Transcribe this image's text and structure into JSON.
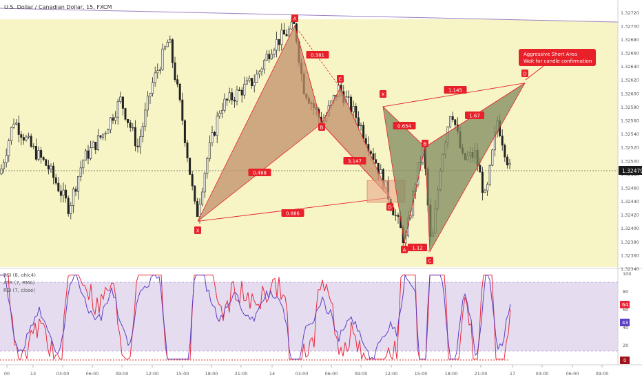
{
  "header": {
    "title": "U.S. Dollar / Canadian Dollar, 15, FXCM"
  },
  "annotation": {
    "line1": "Aggressive Short Area",
    "line2": "Wait for candle confirmation"
  },
  "price": {
    "current": "1.32479",
    "current_value": 1.32479,
    "ylim": [
      1.3234,
      1.3273
    ]
  },
  "indicators": {
    "legend": [
      "RSI (8, ohlc4)",
      "ATR (7, RMA)",
      "RSI (7, close)"
    ],
    "ylim": [
      0,
      100
    ],
    "ticks": [
      "100",
      "80",
      "60",
      "40",
      "20",
      "0"
    ],
    "tick_values": [
      100,
      80,
      60,
      40,
      20,
      0
    ],
    "badges": [
      "64",
      "43",
      "0"
    ]
  },
  "colors": {
    "plot_bg": "#f7f5c6",
    "osc_bg": "#e6dcf0",
    "bull_pattern": "#c08e6a",
    "bear_pattern": "#7f8a5e",
    "red": "#e8202a",
    "osc_line_a": "#e8283a",
    "osc_line_b": "#5b3fc4"
  },
  "chart_data": {
    "type": "candlestick",
    "y_axis_ticks": [
      "1.32720",
      "1.32700",
      "1.32680",
      "1.32660",
      "1.32640",
      "1.32620",
      "1.32600",
      "1.32580",
      "1.32560",
      "1.32540",
      "1.32520",
      "1.32500",
      "1.32480",
      "1.32460",
      "1.32440",
      "1.32420",
      "1.32400",
      "1.32380",
      "1.32360",
      "1.32340"
    ],
    "y_axis_values": [
      1.3272,
      1.327,
      1.3268,
      1.3266,
      1.3264,
      1.3262,
      1.326,
      1.3258,
      1.3256,
      1.3254,
      1.3252,
      1.325,
      1.3248,
      1.3246,
      1.3244,
      1.3242,
      1.324,
      1.3238,
      1.3236,
      1.3234
    ],
    "x_axis_ticks": [
      "00",
      "13",
      "03:00",
      "06:00",
      "09:00",
      "12:00",
      "15:00",
      "18:00",
      "21:00",
      "14",
      "03:00",
      "06:00",
      "09:00",
      "12:00",
      "15:00",
      "18:00",
      "21:00",
      "17",
      "03:00",
      "06:00",
      "09:00"
    ],
    "pattern_1": {
      "points": [
        {
          "label": "X",
          "price": 1.3241
        },
        {
          "label": "A",
          "price": 1.327
        },
        {
          "label": "B",
          "price": 1.32555
        },
        {
          "label": "C",
          "price": 1.32608
        },
        {
          "label": "D",
          "price": 1.32445
        }
      ],
      "ratios": [
        "0.381",
        "0.488",
        "3.147",
        "0.886"
      ]
    },
    "pattern_2": {
      "points": [
        {
          "label": "X",
          "price": 1.3258
        },
        {
          "label": "A",
          "price": 1.32378
        },
        {
          "label": "B",
          "price": 1.3252
        },
        {
          "label": "C",
          "price": 1.32365
        },
        {
          "label": "D",
          "price": 1.32615
        }
      ],
      "ratios": [
        "0.654",
        "1.12",
        "1.67",
        "1.145"
      ]
    }
  }
}
